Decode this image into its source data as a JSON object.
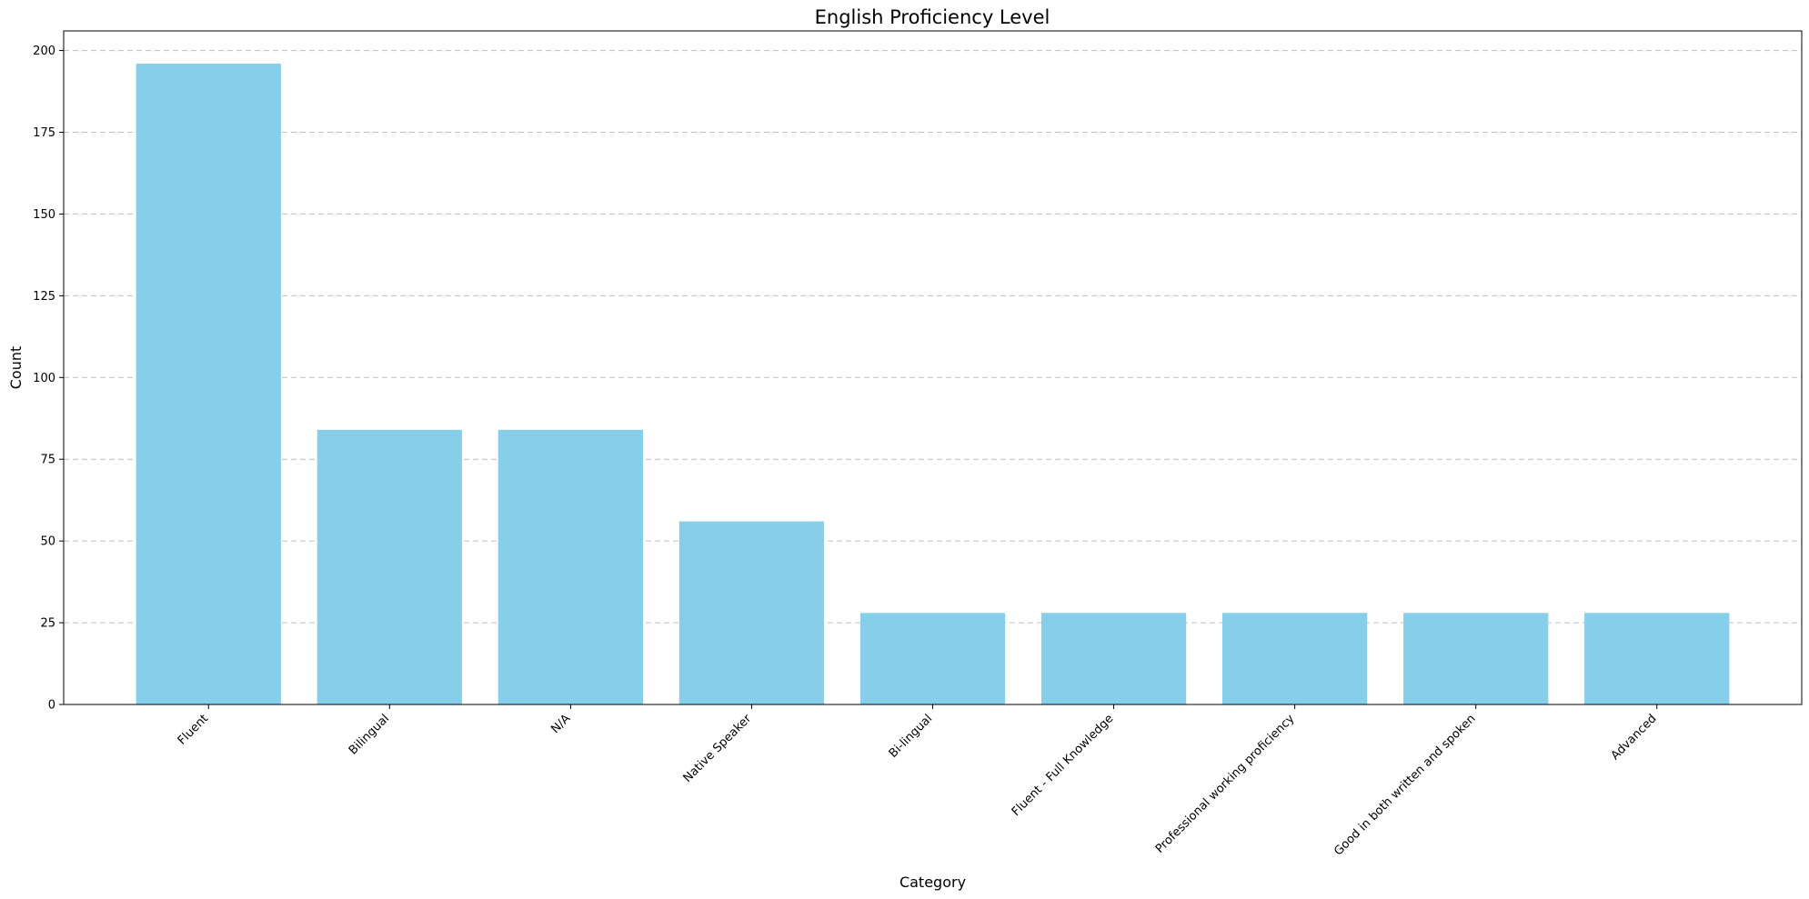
{
  "chart_data": {
    "type": "bar",
    "title": "English Proficiency Level",
    "xlabel": "Category",
    "ylabel": "Count",
    "categories": [
      "Fluent",
      "Bilingual",
      "N/A",
      "Native Speaker",
      "Bi-lingual",
      "Fluent - Full Knowledge",
      "Professional working proficiency",
      "Good in both written and spoken",
      "Advanced"
    ],
    "values": [
      196,
      84,
      84,
      56,
      28,
      28,
      28,
      28,
      28
    ],
    "ylim": [
      0,
      206
    ],
    "yticks": [
      0,
      25,
      50,
      75,
      100,
      125,
      150,
      175,
      200
    ],
    "grid": "y-dashed",
    "bar_color": "#87ceeb"
  }
}
